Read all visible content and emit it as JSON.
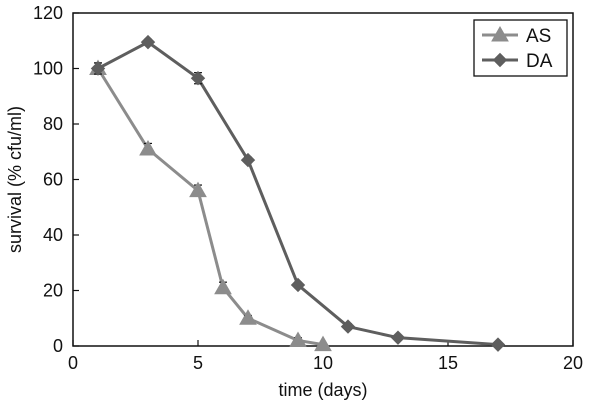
{
  "chart_data": {
    "type": "line",
    "title": "",
    "xlabel": "time (days)",
    "ylabel": "survival (% cfu/ml)",
    "xlim": [
      0,
      20
    ],
    "ylim": [
      0,
      120
    ],
    "xticks": [
      0,
      5,
      10,
      15,
      20
    ],
    "yticks": [
      0,
      20,
      40,
      60,
      80,
      100,
      120
    ],
    "xtick_labels": [
      "0",
      "5",
      "10",
      "15",
      "20"
    ],
    "ytick_labels": [
      "0",
      "20",
      "40",
      "60",
      "80",
      "100",
      "120"
    ],
    "grid": false,
    "legend_position": "top-right",
    "series": [
      {
        "name": "AS",
        "marker": "triangle",
        "color": "#8c8c8c",
        "x": [
          1,
          3,
          5,
          6,
          7,
          9,
          10
        ],
        "y": [
          100,
          71,
          56,
          21,
          10,
          2,
          0.5
        ],
        "err": [
          2,
          2,
          2,
          2,
          1,
          1,
          0.5
        ]
      },
      {
        "name": "DA",
        "marker": "diamond",
        "color": "#5e5e5e",
        "x": [
          1,
          3,
          5,
          7,
          9,
          11,
          13,
          17
        ],
        "y": [
          100,
          109.5,
          96.5,
          67,
          22,
          7,
          3,
          0.5
        ],
        "err": [
          2,
          1,
          2,
          1,
          1,
          1,
          0.5,
          0.5
        ]
      }
    ]
  }
}
